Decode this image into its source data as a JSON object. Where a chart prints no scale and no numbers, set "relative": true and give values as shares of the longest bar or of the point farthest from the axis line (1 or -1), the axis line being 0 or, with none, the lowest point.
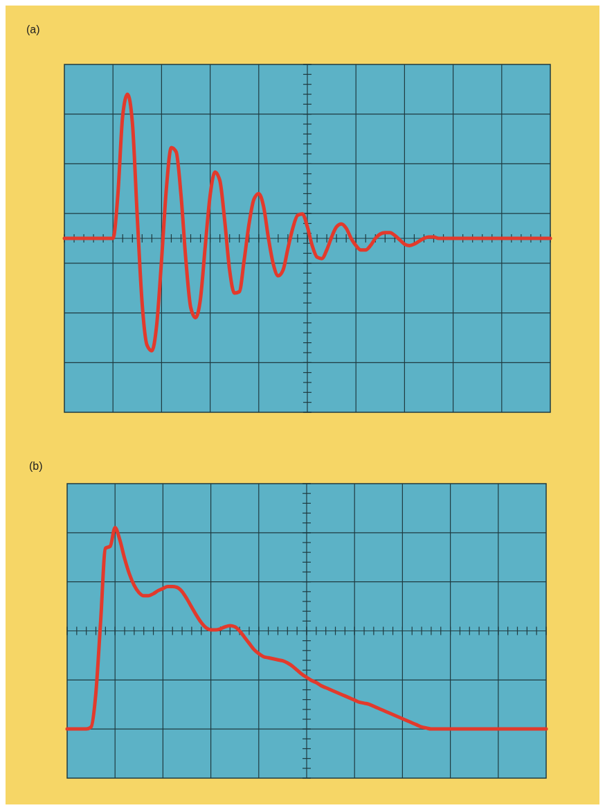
{
  "chart_data": [
    {
      "type": "line",
      "title": "(a)",
      "relative": true,
      "grid": true,
      "categories": [
        null,
        null,
        null,
        null,
        null,
        null,
        null,
        null,
        null,
        null,
        null,
        null,
        null,
        null,
        null,
        null,
        null,
        null,
        null,
        null,
        null,
        null,
        null,
        null,
        null,
        null,
        null,
        null,
        null,
        null,
        null,
        null,
        null,
        null,
        null,
        null,
        null,
        null,
        null,
        null,
        null,
        null,
        null,
        null,
        null,
        null,
        null,
        null,
        null,
        null,
        null,
        null,
        null,
        null,
        null,
        null,
        null,
        null,
        null,
        null,
        null,
        null,
        null,
        null,
        null,
        null,
        null,
        null,
        null,
        null,
        null,
        null,
        null,
        null,
        null,
        null,
        null,
        null,
        null,
        null,
        null,
        null,
        null,
        null,
        null,
        null,
        null,
        null,
        null,
        null,
        null,
        null,
        null,
        null,
        null,
        null,
        null,
        null,
        null,
        null,
        null
      ],
      "series": [
        {
          "color": "#e23a2c",
          "values": [
            0,
            0,
            0,
            0,
            0,
            0,
            0,
            0,
            0,
            0,
            0,
            0.3,
            0.85,
            1.0,
            0.8,
            0.15,
            -0.45,
            -0.74,
            -0.78,
            -0.6,
            -0.15,
            0.35,
            0.63,
            0.6,
            0.3,
            -0.15,
            -0.48,
            -0.55,
            -0.42,
            -0.05,
            0.3,
            0.46,
            0.4,
            0.12,
            -0.22,
            -0.38,
            -0.37,
            -0.15,
            0.1,
            0.27,
            0.31,
            0.22,
            0.0,
            -0.18,
            -0.26,
            -0.22,
            -0.07,
            0.07,
            0.16,
            0.17,
            0.08,
            -0.05,
            -0.13,
            -0.14,
            -0.08,
            0.01,
            0.08,
            0.1,
            0.07,
            0.0,
            -0.05,
            -0.08,
            -0.08,
            -0.05,
            0.0,
            0.03,
            0.04,
            0.04,
            0.02,
            -0.01,
            -0.04,
            -0.05,
            -0.04,
            -0.02,
            0.0,
            0.01,
            0.01,
            0,
            0,
            0,
            0,
            0,
            0,
            0,
            0,
            0,
            0,
            0,
            0,
            0,
            0,
            0,
            0,
            0,
            0,
            0,
            0,
            0,
            0,
            0,
            0
          ]
        }
      ]
    },
    {
      "type": "line",
      "title": "(b)",
      "relative": true,
      "grid": true,
      "categories": [
        null,
        null,
        null,
        null,
        null,
        null,
        null,
        null,
        null,
        null,
        null,
        null,
        null,
        null,
        null,
        null,
        null,
        null,
        null,
        null,
        null,
        null,
        null,
        null,
        null,
        null,
        null,
        null,
        null,
        null,
        null,
        null,
        null,
        null,
        null,
        null,
        null,
        null,
        null,
        null,
        null,
        null,
        null,
        null,
        null,
        null,
        null,
        null,
        null,
        null,
        null,
        null,
        null,
        null,
        null,
        null,
        null,
        null,
        null,
        null,
        null,
        null,
        null,
        null,
        null,
        null,
        null,
        null,
        null,
        null,
        null,
        null,
        null,
        null,
        null,
        null,
        null,
        null,
        null,
        null,
        null,
        null,
        null,
        null,
        null,
        null,
        null,
        null,
        null,
        null,
        null,
        null,
        null,
        null,
        null,
        null,
        null,
        null,
        null,
        null,
        null
      ],
      "series": [
        {
          "color": "#e23a2c",
          "values": [
            -0.95,
            -0.95,
            -0.95,
            -0.95,
            -0.95,
            -0.93,
            -0.6,
            0.1,
            0.8,
            0.82,
            1.0,
            0.88,
            0.7,
            0.55,
            0.44,
            0.37,
            0.34,
            0.34,
            0.36,
            0.39,
            0.41,
            0.43,
            0.43,
            0.42,
            0.38,
            0.31,
            0.23,
            0.15,
            0.08,
            0.03,
            0.01,
            0.01,
            0.02,
            0.04,
            0.05,
            0.04,
            0.0,
            -0.06,
            -0.12,
            -0.18,
            -0.22,
            -0.25,
            -0.26,
            -0.27,
            -0.28,
            -0.29,
            -0.31,
            -0.34,
            -0.38,
            -0.42,
            -0.45,
            -0.48,
            -0.5,
            -0.53,
            -0.55,
            -0.57,
            -0.59,
            -0.61,
            -0.63,
            -0.65,
            -0.67,
            -0.69,
            -0.7,
            -0.71,
            -0.73,
            -0.75,
            -0.77,
            -0.79,
            -0.81,
            -0.83,
            -0.85,
            -0.87,
            -0.89,
            -0.91,
            -0.93,
            -0.94,
            -0.95,
            -0.95,
            -0.95,
            -0.95,
            -0.95,
            -0.95,
            -0.95,
            -0.95,
            -0.95,
            -0.95,
            -0.95,
            -0.95,
            -0.95,
            -0.95,
            -0.95,
            -0.95,
            -0.95,
            -0.95,
            -0.95,
            -0.95,
            -0.95,
            -0.95,
            -0.95,
            -0.95,
            -0.95
          ]
        }
      ]
    }
  ]
}
